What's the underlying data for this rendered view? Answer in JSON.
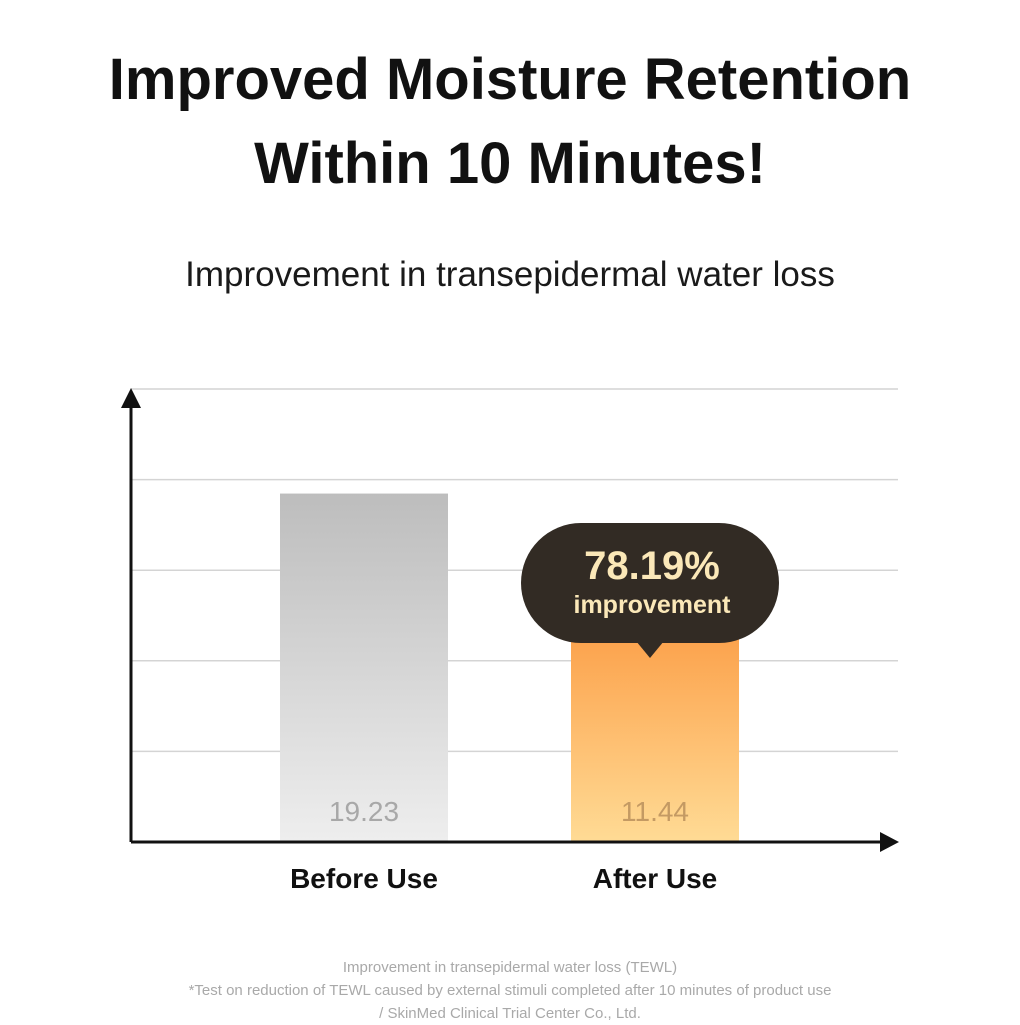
{
  "headline": {
    "line1": "Improved Moisture Retention",
    "line2": "Within 10 Minutes!"
  },
  "chart_data": {
    "type": "bar",
    "title": "Improvement in transepidermal water loss",
    "categories": [
      "Before Use",
      "After Use"
    ],
    "values": [
      19.23,
      11.44
    ],
    "value_labels": [
      "19.23",
      "11.44"
    ],
    "ylim": [
      0,
      25
    ],
    "grid": true,
    "colors": {
      "before_top": "#bdbdbd",
      "before_bottom": "#eeeeee",
      "after_top": "#fca24c",
      "after_bottom": "#ffdb95",
      "before_label": "#a8a8a8",
      "after_label": "#c49a63"
    },
    "callout": {
      "value": "78.19%",
      "text": "improvement",
      "target_category": "After Use",
      "bg_color": "#322b24",
      "text_color": "#fbe8b8"
    }
  },
  "footnote": {
    "line1": "Improvement in transepidermal water loss (TEWL)",
    "line2": "*Test on reduction of TEWL caused by external stimuli completed after 10 minutes of product use",
    "line3": "/ SkinMed Clinical Trial Center Co., Ltd."
  }
}
